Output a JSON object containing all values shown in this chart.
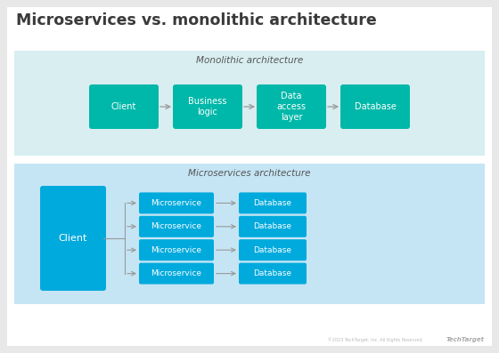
{
  "title": "Microservices vs. monolithic architecture",
  "title_color": "#3a3a3a",
  "bg_color": "#e8e8e8",
  "white_bg": "#ffffff",
  "mono_panel_color": "#d8eef0",
  "mono_panel_label": "Monolithic architecture",
  "mono_boxes": [
    {
      "label": "Client",
      "color": "#00b8a9"
    },
    {
      "label": "Business\nlogic",
      "color": "#00b8a9"
    },
    {
      "label": "Data\naccess\nlayer",
      "color": "#00b8a9"
    },
    {
      "label": "Database",
      "color": "#00b8a9"
    }
  ],
  "mono_arrow_color": "#999999",
  "micro_panel_color": "#c5e5f5",
  "micro_panel_label": "Microservices architecture",
  "micro_client_color": "#00aadd",
  "micro_service_color": "#00aadd",
  "micro_db_color": "#00aadd",
  "micro_arrow_color": "#999999",
  "footer_text": "©2023 TechTarget, Inc. All Rights Reserved.",
  "footer_logo": "TechTarget"
}
